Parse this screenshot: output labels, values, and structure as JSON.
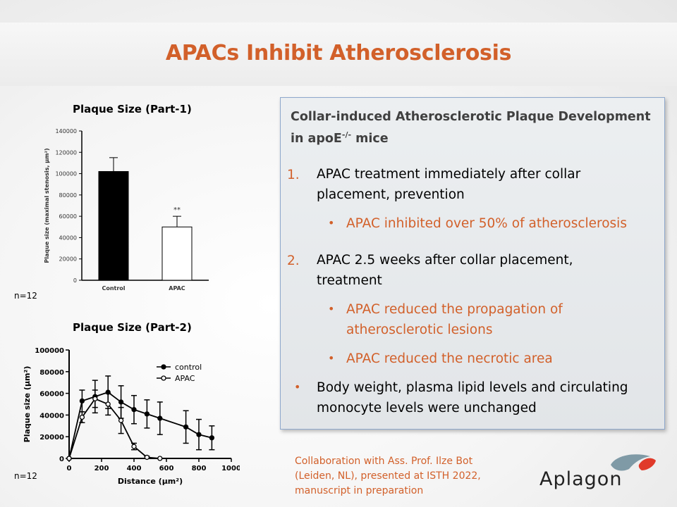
{
  "slide": {
    "title": "APACs Inhibit Atherosclerosis"
  },
  "left": {
    "chart1_title": "Plaque Size (Part-1)",
    "chart2_title": "Plaque Size (Part-2)",
    "n1": "n=12",
    "n2": "n=12"
  },
  "box": {
    "heading_line1": "Collar-induced Atherosclerotic Plaque Development",
    "heading_line2_pre": "in apoE",
    "heading_sup": "-/-",
    "heading_line2_post": " mice",
    "item1_num": "1.",
    "item1_line1": "APAC treatment immediately after collar",
    "item1_line2": "placement, prevention",
    "item1_sub": "APAC inhibited over 50% of atherosclerosis",
    "item2_num": "2.",
    "item2_line1": "APAC 2.5 weeks after collar placement,",
    "item2_line2": "treatment",
    "item2_sub1_line1": "APAC reduced the propagation of",
    "item2_sub1_line2": "atherosclerotic lesions",
    "item2_sub2": "APAC reduced the necrotic area",
    "bullet_line1": "Body weight, plasma lipid levels and circulating",
    "bullet_line2": "monocyte levels were unchanged"
  },
  "footer": {
    "collab_line1": "Collaboration with Ass. Prof. Ilze Bot",
    "collab_line2": "(Leiden, NL), presented at ISTH 2022,",
    "collab_line3": "manuscript in preparation",
    "logo_text": "Aplagon"
  },
  "colors": {
    "accent": "#d2602a",
    "logo_gray": "#7f9aa6",
    "logo_red": "#e03a2a"
  },
  "chart_data": [
    {
      "type": "bar",
      "ylabel": "Plaque size (maximal stenosis, µm²)",
      "ylim": [
        0,
        140000
      ],
      "yticks": [
        0,
        20000,
        40000,
        60000,
        80000,
        100000,
        120000,
        140000
      ],
      "ytick_labels": [
        "0",
        "20000",
        "40000",
        "60000",
        "80000",
        "100000",
        "120000",
        "140000"
      ],
      "categories": [
        "Control",
        "APAC"
      ],
      "values": [
        102000,
        50000
      ],
      "errors": [
        13000,
        10000
      ],
      "colors": [
        "#000000",
        "#ffffff"
      ],
      "annotation": "**"
    },
    {
      "type": "line",
      "xlabel": "Distance (µm²)",
      "ylabel": "Plaque size (µm²)",
      "xlim": [
        0,
        1000
      ],
      "ylim": [
        0,
        100000
      ],
      "xticks": [
        0,
        200,
        400,
        600,
        800,
        1000
      ],
      "xtick_labels": [
        "0",
        "200",
        "400",
        "600",
        "800",
        "1000"
      ],
      "yticks": [
        0,
        20000,
        40000,
        60000,
        80000,
        100000
      ],
      "ytick_labels": [
        "0",
        "20000",
        "40000",
        "60000",
        "80000",
        "100000"
      ],
      "legend": "top-right",
      "series": [
        {
          "name": "control",
          "marker": "filled",
          "x": [
            0,
            80,
            160,
            240,
            320,
            400,
            480,
            560,
            720,
            800,
            880
          ],
          "y": [
            0,
            53000,
            57000,
            61000,
            52000,
            45000,
            41000,
            37000,
            29000,
            22000,
            19000
          ],
          "err": [
            0,
            10000,
            15000,
            15000,
            15000,
            13000,
            13000,
            15000,
            15000,
            14000,
            11000
          ]
        },
        {
          "name": "APAC",
          "marker": "open",
          "x": [
            0,
            80,
            160,
            240,
            320,
            400,
            480,
            560
          ],
          "y": [
            0,
            38000,
            55000,
            50000,
            35000,
            11000,
            1000,
            0
          ],
          "err": [
            0,
            5000,
            8000,
            10000,
            12000,
            3000,
            1000,
            0
          ]
        }
      ]
    }
  ]
}
